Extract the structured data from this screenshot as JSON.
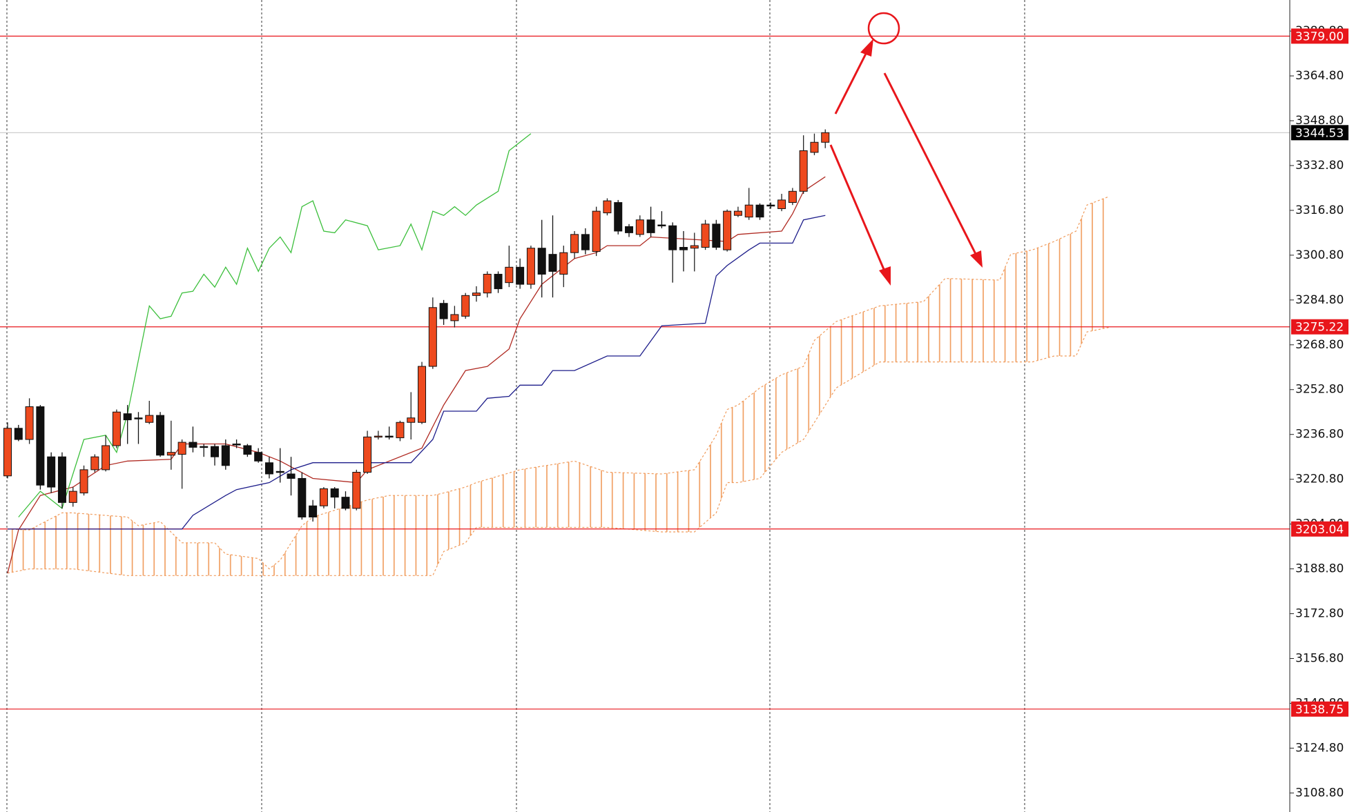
{
  "chart_data": {
    "type": "candlestick",
    "ylim": [
      3102.0,
      3391.9
    ],
    "yticks": [
      {
        "value": 3380.8,
        "label": "3380.80"
      },
      {
        "value": 3364.8,
        "label": "3364.80"
      },
      {
        "value": 3348.8,
        "label": "3348.80"
      },
      {
        "value": 3332.8,
        "label": "3332.80"
      },
      {
        "value": 3316.8,
        "label": "3316.80"
      },
      {
        "value": 3300.8,
        "label": "3300.80"
      },
      {
        "value": 3284.8,
        "label": "3284.80"
      },
      {
        "value": 3268.8,
        "label": "3268.80"
      },
      {
        "value": 3252.8,
        "label": "3252.80"
      },
      {
        "value": 3236.8,
        "label": "3236.80"
      },
      {
        "value": 3220.8,
        "label": "3220.80"
      },
      {
        "value": 3204.8,
        "label": "3204.80"
      },
      {
        "value": 3188.8,
        "label": "3188.80"
      },
      {
        "value": 3172.8,
        "label": "3172.80"
      },
      {
        "value": 3156.8,
        "label": "3156.80"
      },
      {
        "value": 3140.8,
        "label": "3140.80"
      },
      {
        "value": 3124.8,
        "label": "3124.80"
      },
      {
        "value": 3108.8,
        "label": "3108.80"
      }
    ],
    "up_color": "#ee4a1e",
    "down_color": "#111111",
    "candles": {
      "open": [
        3222.0,
        3239.0,
        3235.0,
        3246.7,
        3228.8,
        3228.8,
        3212.5,
        3215.9,
        3224.2,
        3224.2,
        3232.8,
        3244.2,
        3242.7,
        3241.1,
        3243.6,
        3229.4,
        3229.7,
        3234.0,
        3232.5,
        3232.5,
        3232.8,
        3233.4,
        3232.8,
        3230.4,
        3226.7,
        3223.6,
        3222.7,
        3221.1,
        3211.3,
        3211.3,
        3217.4,
        3214.4,
        3210.4,
        3223.3,
        3235.9,
        3236.2,
        3235.6,
        3241.1,
        3241.1,
        3261.1,
        3283.6,
        3277.4,
        3279.0,
        3286.4,
        3287.3,
        3294.0,
        3291.0,
        3296.5,
        3290.4,
        3303.3,
        3301.1,
        3294.0,
        3301.7,
        3308.2,
        3302.1,
        3315.9,
        3319.6,
        3311.0,
        3308.2,
        3313.4,
        3311.6,
        3311.3,
        3303.6,
        3303.3,
        3303.6,
        3311.9,
        3302.7,
        3315.0,
        3314.4,
        3318.7,
        3318.7,
        3317.4,
        3319.6,
        3323.6,
        3337.5,
        3341.1
      ],
      "high": [
        3241.1,
        3240.2,
        3249.7,
        3247.3,
        3230.4,
        3230.4,
        3218.0,
        3225.7,
        3229.7,
        3236.5,
        3245.7,
        3247.3,
        3244.8,
        3248.8,
        3244.8,
        3241.7,
        3235.0,
        3239.6,
        3233.4,
        3233.4,
        3235.0,
        3235.0,
        3233.4,
        3231.9,
        3228.8,
        3231.9,
        3228.8,
        3223.3,
        3213.4,
        3218.0,
        3218.0,
        3216.5,
        3224.2,
        3238.1,
        3238.1,
        3239.6,
        3241.7,
        3251.9,
        3262.7,
        3285.7,
        3284.8,
        3282.7,
        3287.3,
        3289.7,
        3295.0,
        3295.0,
        3304.2,
        3299.6,
        3304.2,
        3313.4,
        3315.0,
        3304.2,
        3309.4,
        3310.4,
        3318.1,
        3321.1,
        3320.5,
        3311.9,
        3315.0,
        3318.1,
        3316.5,
        3312.5,
        3309.4,
        3308.8,
        3313.4,
        3313.4,
        3317.1,
        3318.1,
        3324.8,
        3319.3,
        3319.6,
        3322.7,
        3324.8,
        3343.6,
        3344.2,
        3345.7
      ],
      "low": [
        3221.1,
        3234.4,
        3233.4,
        3217.1,
        3215.9,
        3210.4,
        3211.0,
        3215.0,
        3223.3,
        3223.6,
        3231.9,
        3233.4,
        3233.4,
        3240.5,
        3228.8,
        3224.2,
        3217.4,
        3230.4,
        3228.8,
        3225.7,
        3224.2,
        3231.9,
        3228.8,
        3226.7,
        3221.1,
        3219.6,
        3215.0,
        3206.4,
        3205.7,
        3210.4,
        3210.4,
        3209.7,
        3209.7,
        3222.7,
        3235.0,
        3235.0,
        3234.4,
        3235.0,
        3240.5,
        3260.2,
        3275.9,
        3275.0,
        3278.1,
        3284.2,
        3285.7,
        3287.3,
        3289.4,
        3288.8,
        3288.8,
        3285.7,
        3285.7,
        3289.4,
        3299.6,
        3301.1,
        3300.5,
        3315.0,
        3308.2,
        3307.3,
        3307.3,
        3307.3,
        3310.4,
        3291.0,
        3295.0,
        3295.0,
        3302.7,
        3302.7,
        3302.1,
        3314.4,
        3313.4,
        3313.4,
        3317.4,
        3316.5,
        3318.7,
        3322.7,
        3336.5,
        3339.0
      ],
      "close": [
        3239.0,
        3235.0,
        3246.7,
        3218.7,
        3218.0,
        3212.5,
        3216.5,
        3224.2,
        3228.8,
        3232.8,
        3244.8,
        3242.0,
        3242.4,
        3243.6,
        3229.4,
        3230.4,
        3234.0,
        3232.2,
        3232.2,
        3228.8,
        3225.7,
        3233.1,
        3229.7,
        3227.3,
        3222.7,
        3223.3,
        3221.1,
        3207.3,
        3207.3,
        3217.4,
        3214.4,
        3210.4,
        3223.3,
        3235.9,
        3236.2,
        3235.9,
        3241.1,
        3242.7,
        3261.1,
        3282.1,
        3278.1,
        3279.6,
        3286.4,
        3287.3,
        3294.0,
        3288.8,
        3296.5,
        3290.4,
        3303.3,
        3294.0,
        3295.0,
        3301.7,
        3308.2,
        3302.7,
        3316.5,
        3320.2,
        3309.4,
        3308.8,
        3313.4,
        3308.8,
        3311.3,
        3302.7,
        3302.7,
        3304.2,
        3311.9,
        3303.6,
        3316.5,
        3316.5,
        3318.7,
        3314.4,
        3318.4,
        3320.5,
        3323.6,
        3338.1,
        3341.1,
        3344.53
      ]
    },
    "lines": [
      {
        "color": "#b02a22",
        "x": [
          0,
          1,
          3,
          6,
          9,
          11,
          15,
          16,
          20,
          23,
          25,
          28,
          32,
          33,
          38,
          40,
          42,
          44,
          46,
          47,
          49,
          52,
          54,
          55,
          58,
          59,
          66,
          67,
          71,
          72,
          73,
          75
        ],
        "values": [
          3187.3,
          3202.7,
          3215.0,
          3218.0,
          3225.7,
          3227.3,
          3227.9,
          3233.4,
          3233.4,
          3230.4,
          3227.3,
          3221.1,
          3219.6,
          3224.2,
          3231.9,
          3247.3,
          3259.6,
          3261.1,
          3267.3,
          3278.1,
          3290.4,
          3299.6,
          3301.7,
          3304.2,
          3304.2,
          3307.3,
          3305.7,
          3308.2,
          3309.4,
          3315.6,
          3323.6,
          3328.8
        ]
      },
      {
        "color": "#1c1c8a",
        "x": [
          0,
          2,
          16,
          17,
          20,
          21,
          24,
          26,
          28,
          37,
          39,
          40,
          43,
          44,
          46,
          47,
          49,
          50,
          52,
          55,
          58,
          60,
          64,
          65,
          66,
          68,
          69,
          72,
          73,
          75
        ],
        "values": [
          3203.0,
          3203.0,
          3203.0,
          3207.9,
          3215.0,
          3217.1,
          3219.6,
          3224.2,
          3226.7,
          3226.7,
          3235.0,
          3245.1,
          3245.1,
          3249.7,
          3250.4,
          3254.4,
          3254.4,
          3259.6,
          3259.6,
          3264.8,
          3264.8,
          3275.6,
          3276.5,
          3293.4,
          3297.1,
          3302.7,
          3305.1,
          3305.1,
          3313.4,
          3315.0
        ]
      },
      {
        "color": "#3cbf3c",
        "x": [
          1,
          3,
          5,
          7,
          9,
          10,
          11,
          13,
          14,
          15,
          16,
          17,
          18,
          19,
          20,
          21,
          22,
          23,
          24,
          25,
          26,
          27,
          28,
          29,
          30,
          31,
          33,
          34,
          36,
          37,
          38,
          39,
          40,
          41,
          42,
          43,
          45,
          46,
          48
        ],
        "values": [
          3207.3,
          3216.5,
          3210.4,
          3235.0,
          3236.5,
          3230.4,
          3244.2,
          3282.7,
          3278.1,
          3279.0,
          3287.3,
          3287.9,
          3294.0,
          3289.4,
          3296.5,
          3290.4,
          3303.3,
          3295.0,
          3303.3,
          3307.3,
          3301.7,
          3318.1,
          3320.2,
          3309.4,
          3308.8,
          3313.4,
          3311.3,
          3302.7,
          3304.2,
          3311.9,
          3302.7,
          3316.5,
          3315.0,
          3318.1,
          3315.0,
          3318.7,
          3323.6,
          3338.1,
          3344.2
        ]
      }
    ],
    "cloud": {
      "color": "#f09a5a",
      "x": [
        0,
        2,
        5,
        6,
        11,
        12,
        14,
        16,
        19,
        20,
        23,
        24,
        25,
        27,
        28,
        33,
        35,
        39,
        40,
        42,
        43,
        47,
        52,
        55,
        60,
        63,
        65,
        66,
        67,
        69,
        71,
        73,
        74,
        76,
        80,
        84,
        86,
        91,
        92,
        94,
        96,
        98,
        99,
        101
      ],
      "upper": [
        3203.0,
        3202.7,
        3208.8,
        3208.8,
        3207.3,
        3204.2,
        3205.7,
        3198.1,
        3198.1,
        3194.1,
        3192.5,
        3188.8,
        3191.9,
        3204.2,
        3207.3,
        3213.4,
        3215.0,
        3215.0,
        3215.9,
        3218.0,
        3219.6,
        3224.2,
        3227.3,
        3223.3,
        3222.7,
        3224.2,
        3236.5,
        3245.7,
        3247.3,
        3253.4,
        3258.1,
        3261.1,
        3270.4,
        3277.1,
        3282.7,
        3284.2,
        3292.5,
        3291.9,
        3301.1,
        3302.7,
        3305.7,
        3309.4,
        3318.7,
        3321.7
      ],
      "lower": [
        3187.3,
        3188.8,
        3188.8,
        3188.8,
        3186.4,
        3186.4,
        3186.4,
        3186.4,
        3186.4,
        3186.4,
        3186.4,
        3186.4,
        3186.4,
        3186.4,
        3186.4,
        3186.4,
        3186.4,
        3186.4,
        3195.0,
        3198.1,
        3203.6,
        3203.6,
        3203.6,
        3203.6,
        3202.0,
        3202.0,
        3208.8,
        3219.6,
        3219.6,
        3221.1,
        3230.4,
        3235.0,
        3241.1,
        3253.4,
        3262.7,
        3262.7,
        3262.7,
        3262.7,
        3262.7,
        3262.7,
        3264.8,
        3264.8,
        3273.4,
        3275.0
      ]
    },
    "level_color": "#e8161b",
    "levels": [
      {
        "value": 3379.0,
        "label": "3379.00"
      },
      {
        "value": 3275.22,
        "label": "3275.22"
      },
      {
        "value": 3203.04,
        "label": "3203.04"
      },
      {
        "value": 3138.75,
        "label": "3138.75"
      }
    ],
    "current_price": {
      "value": 3344.53,
      "label": "3344.53"
    }
  }
}
